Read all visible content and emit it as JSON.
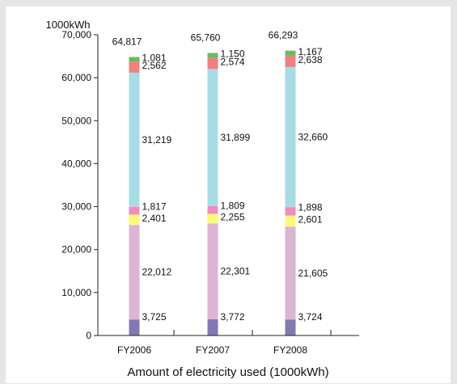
{
  "chart_data": {
    "type": "bar",
    "stacked": true,
    "title": "Amount of electricity used (1000kWh)",
    "ylabel": "1000kWh",
    "xlabel": "",
    "ylim": [
      0,
      70000
    ],
    "yticks": [
      0,
      10000,
      20000,
      30000,
      40000,
      50000,
      60000,
      70000
    ],
    "ytick_labels": [
      "0",
      "10,000",
      "20,000",
      "30,000",
      "40,000",
      "50,000",
      "60,000",
      "70,000"
    ],
    "categories": [
      "FY2006",
      "FY2007",
      "FY2008"
    ],
    "totals": [
      64817,
      65760,
      66293
    ],
    "total_labels": [
      "64,817",
      "65,760",
      "66,293"
    ],
    "grid": false,
    "legend": "none",
    "series": [
      {
        "color": "#8478b2",
        "values": [
          3725,
          3772,
          3724
        ],
        "labels": [
          "3,725",
          "3,772",
          "3,724"
        ]
      },
      {
        "color": "#dcb4d4",
        "values": [
          22012,
          22301,
          21605
        ],
        "labels": [
          "22,012",
          "22,301",
          "21,605"
        ]
      },
      {
        "color": "#fafa78",
        "values": [
          2401,
          2255,
          2601
        ],
        "labels": [
          "2,401",
          "2,255",
          "2,601"
        ]
      },
      {
        "color": "#f08cbe",
        "values": [
          1817,
          1809,
          1898
        ],
        "labels": [
          "1,817",
          "1,809",
          "1,898"
        ]
      },
      {
        "color": "#a8dce4",
        "values": [
          31219,
          31899,
          32660
        ],
        "labels": [
          "31,219",
          "31,899",
          "32,660"
        ]
      },
      {
        "color": "#f08080",
        "values": [
          2562,
          2574,
          2638
        ],
        "labels": [
          "2,562",
          "2,574",
          "2,638"
        ]
      },
      {
        "color": "#6cb864",
        "values": [
          1081,
          1150,
          1167
        ],
        "labels": [
          "1,081",
          "1,150",
          "1,167"
        ]
      }
    ]
  }
}
